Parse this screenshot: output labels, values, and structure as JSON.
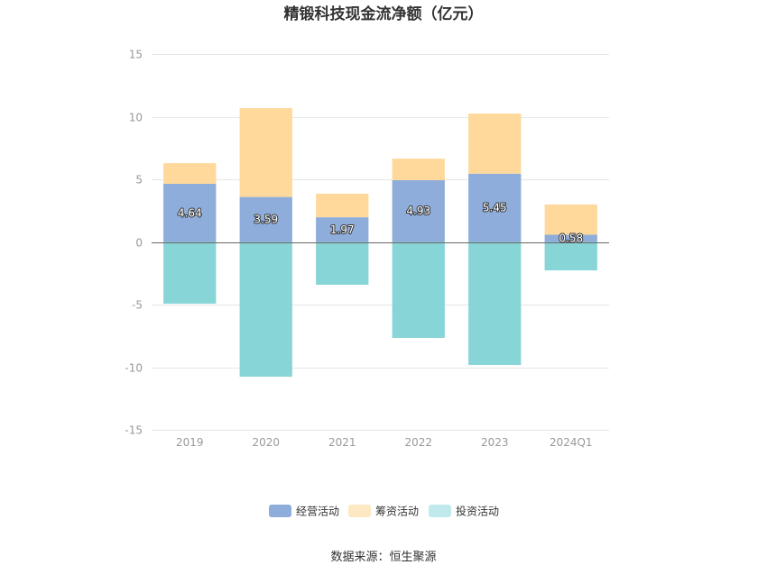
{
  "chart_data": {
    "type": "bar",
    "stacked": true,
    "title": "精锻科技现金流净额（亿元）",
    "categories": [
      "2019",
      "2020",
      "2021",
      "2022",
      "2023",
      "2024Q1"
    ],
    "ylim": [
      -15,
      15
    ],
    "yticks": [
      15,
      10,
      5,
      0,
      -5,
      -10,
      -15
    ],
    "grid": true,
    "legend_position": "bottom",
    "series": [
      {
        "name": "经营活动",
        "color": "#8fadda",
        "legend_color": "#8fadda",
        "show_labels": true,
        "values": [
          4.64,
          3.59,
          1.97,
          4.93,
          5.45,
          0.58
        ]
      },
      {
        "name": "筹资活动",
        "color": "#fed99b",
        "legend_color": "#fde8c4",
        "show_labels": false,
        "values": [
          1.65,
          7.09,
          1.88,
          1.72,
          4.8,
          2.41
        ]
      },
      {
        "name": "投资活动",
        "color": "#88d5d8",
        "legend_color": "#bfe9ea",
        "show_labels": false,
        "values": [
          -4.93,
          -10.76,
          -3.42,
          -7.66,
          -9.82,
          -2.27
        ]
      }
    ]
  },
  "source": "数据来源：恒生聚源"
}
